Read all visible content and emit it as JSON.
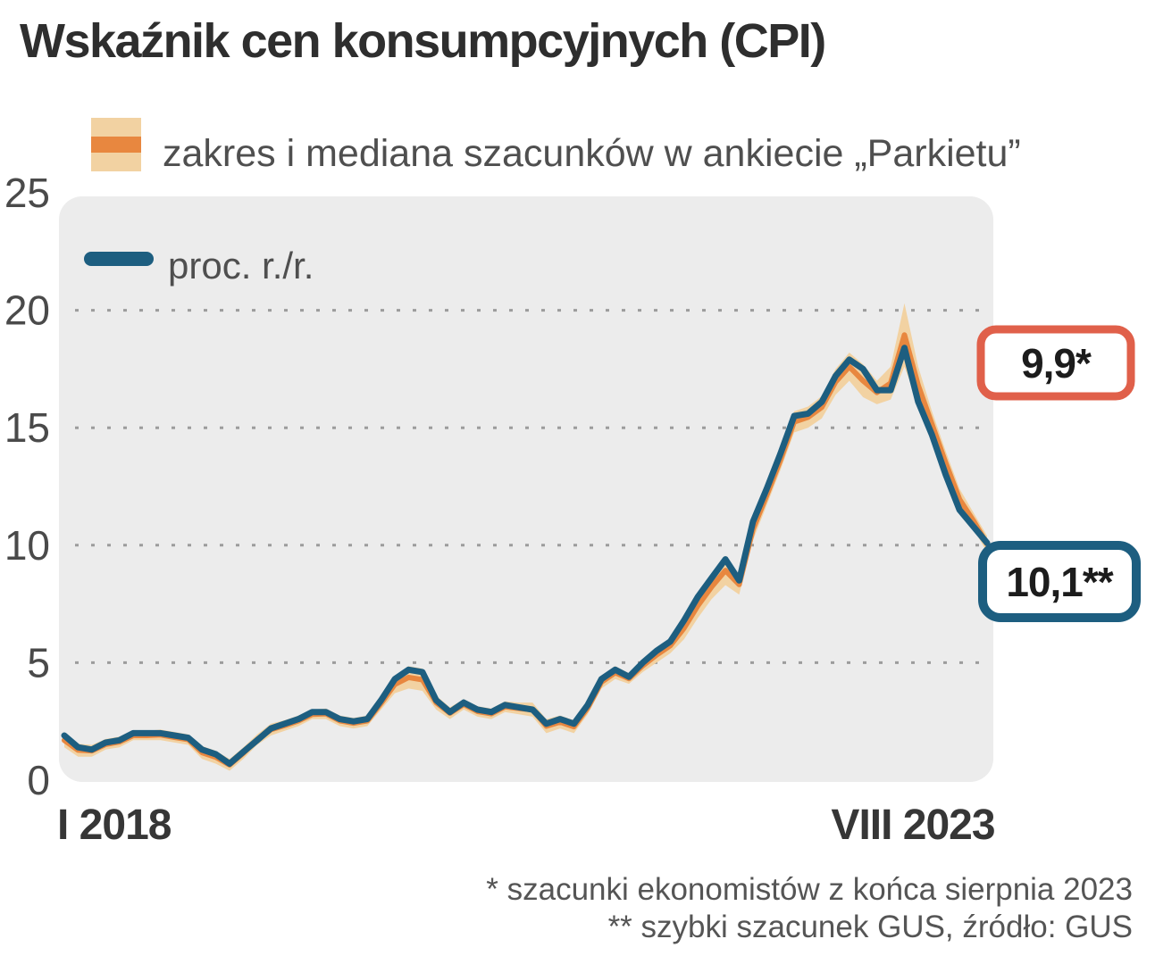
{
  "title": "Wskaźnik cen konsumpcyjnych (CPI)",
  "legend": {
    "band_label": "zakres i mediana szacunków w ankiecie „Parkietu”",
    "line_label": "proc. r./r."
  },
  "y_axis": {
    "ticks": [
      25,
      20,
      15,
      10,
      5,
      0
    ],
    "gridline_values": [
      20,
      15,
      10,
      5
    ]
  },
  "x_axis": {
    "start_label": "I 2018",
    "end_label": "VIII 2023"
  },
  "callouts": {
    "survey": {
      "label": "9,9*"
    },
    "gus": {
      "label": "10,1**"
    }
  },
  "footnotes": [
    "* szacunki ekonomistów z końca sierpnia 2023",
    "** szybki szacunek GUS, źródło: GUS"
  ],
  "colors": {
    "cpi_line": "#1d5e80",
    "band_fill": "#f2d2a2",
    "median_line": "#e8873f",
    "survey_callout_border": "#e0604a",
    "gus_callout_border": "#1d5e80",
    "plot_background": "#ececec",
    "gridline": "#9c9c9c"
  },
  "chart_data": {
    "type": "line",
    "title": "Wskaźnik cen konsumpcyjnych (CPI)",
    "x_unit": "month",
    "x_range": [
      "2018-01",
      "2023-08"
    ],
    "x_tick_labels": [
      "I 2018",
      "VIII 2023"
    ],
    "ylabel": "proc. r./r.",
    "ylim": [
      0,
      25
    ],
    "grid": "dotted horizontal lines at 5, 10, 15, 20",
    "legend_position": "top-left",
    "series": [
      {
        "id": "cpi",
        "name": "proc. r./r.",
        "values": [
          1.9,
          1.4,
          1.3,
          1.6,
          1.7,
          2.0,
          2.0,
          2.0,
          1.9,
          1.8,
          1.3,
          1.1,
          0.7,
          1.2,
          1.7,
          2.2,
          2.4,
          2.6,
          2.9,
          2.9,
          2.6,
          2.5,
          2.6,
          3.4,
          4.3,
          4.7,
          4.6,
          3.4,
          2.9,
          3.3,
          3.0,
          2.9,
          3.2,
          3.1,
          3.0,
          2.4,
          2.6,
          2.4,
          3.2,
          4.3,
          4.7,
          4.4,
          5.0,
          5.5,
          5.9,
          6.8,
          7.8,
          8.6,
          9.4,
          8.5,
          11.0,
          12.4,
          13.9,
          15.5,
          15.6,
          16.1,
          17.2,
          17.9,
          17.5,
          16.6,
          16.6,
          18.4,
          16.1,
          14.7,
          13.0,
          11.5,
          10.8,
          10.1
        ]
      },
      {
        "id": "band_low",
        "name": "zakres szacunków w ankiecie „Parkietu” — dół",
        "values": [
          1.4,
          1.0,
          1.0,
          1.3,
          1.4,
          1.7,
          1.7,
          1.7,
          1.6,
          1.5,
          0.9,
          0.7,
          0.4,
          0.9,
          1.5,
          1.9,
          2.1,
          2.3,
          2.6,
          2.6,
          2.3,
          2.2,
          2.3,
          3.0,
          3.7,
          3.9,
          3.8,
          3.0,
          2.6,
          3.0,
          2.7,
          2.6,
          2.9,
          2.8,
          2.7,
          2.0,
          2.2,
          2.0,
          2.8,
          3.9,
          4.3,
          4.1,
          4.6,
          5.0,
          5.4,
          6.0,
          6.9,
          7.7,
          8.3,
          7.9,
          10.2,
          11.7,
          13.2,
          14.8,
          15.0,
          15.4,
          16.4,
          17.0,
          16.3,
          16.0,
          16.2,
          17.6,
          16.0,
          14.6,
          13.0,
          11.5,
          10.7,
          9.7
        ]
      },
      {
        "id": "band_high",
        "name": "zakres szacunków w ankiecie „Parkietu” — góra",
        "values": [
          2.0,
          1.55,
          1.5,
          1.75,
          1.85,
          2.1,
          2.1,
          2.15,
          2.05,
          1.95,
          1.45,
          1.25,
          0.9,
          1.4,
          1.95,
          2.4,
          2.55,
          2.75,
          3.0,
          3.05,
          2.75,
          2.65,
          2.75,
          3.55,
          4.45,
          4.85,
          4.75,
          3.6,
          3.1,
          3.45,
          3.15,
          3.05,
          3.35,
          3.3,
          3.3,
          2.6,
          2.75,
          2.55,
          3.35,
          4.45,
          4.85,
          4.55,
          5.15,
          5.65,
          6.05,
          6.95,
          7.95,
          8.75,
          9.55,
          8.75,
          11.15,
          12.55,
          14.05,
          15.7,
          15.9,
          16.35,
          17.5,
          18.2,
          17.7,
          17.0,
          17.6,
          20.3,
          17.6,
          15.7,
          14.0,
          12.4,
          11.4,
          10.4
        ]
      }
    ],
    "annotations": {
      "survey_median_aug_2023": "9,9*",
      "gus_flash_aug_2023": "10,1**"
    }
  }
}
